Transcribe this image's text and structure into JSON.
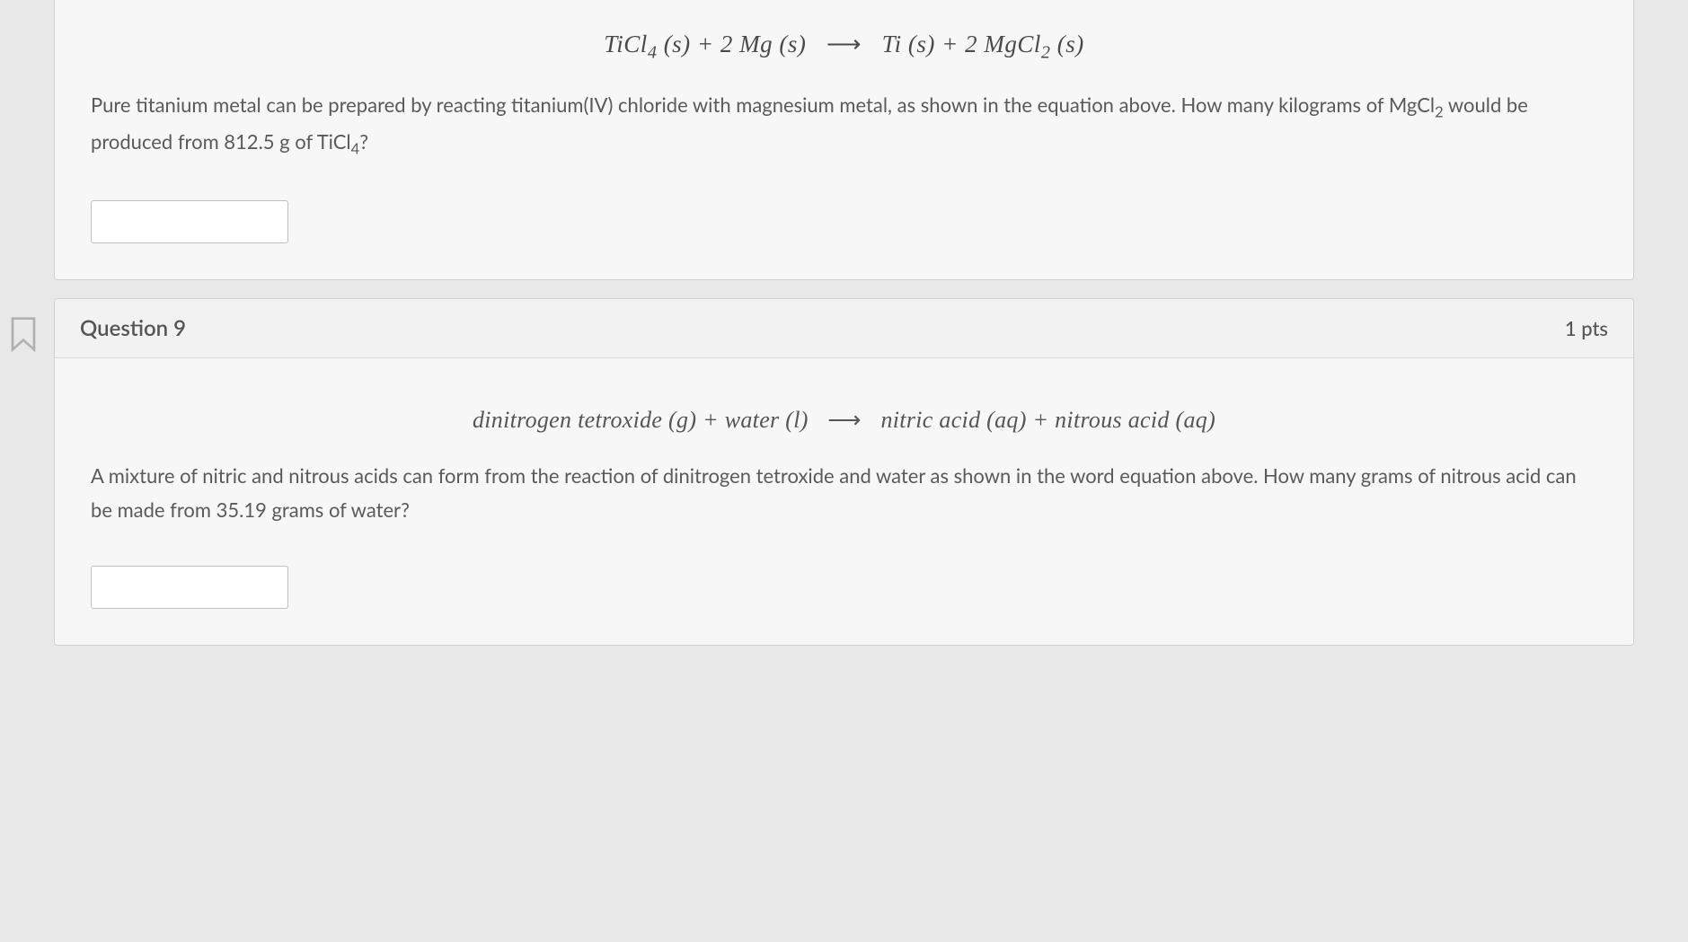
{
  "question8": {
    "equation_html": "TiCl<sub>4</sub> (s) + 2 Mg (s) &nbsp;<span class='arrow'>&#10230;</span>&nbsp; Ti (s) + 2 MgCl<sub>2</sub> (s)",
    "text_html": "Pure titanium metal can be prepared by reacting titanium(IV) chloride with magnesium metal, as shown in the equation above. How many kilograms of MgCl<sub>2</sub> would be produced from 812.5 g of TiCl<sub>4</sub>?",
    "answer_value": ""
  },
  "question9": {
    "title": "Question 9",
    "points": "1 pts",
    "equation_html": "dinitrogen tetroxide (g) + water (l) &nbsp;<span class='arrow'>&#10230;</span>&nbsp; nitric acid (aq) + nitrous acid (aq)",
    "text": "A mixture of nitric and nitrous acids can form from the reaction of dinitrogen tetroxide and water as shown in the word equation above. How many grams of nitrous acid can be made from 35.19 grams of water?",
    "answer_value": ""
  },
  "colors": {
    "background": "#e8e8e8",
    "card_bg": "#f7f7f7",
    "border": "#d0d0d0",
    "text_primary": "#5a5a5a",
    "text_heading": "#555"
  }
}
